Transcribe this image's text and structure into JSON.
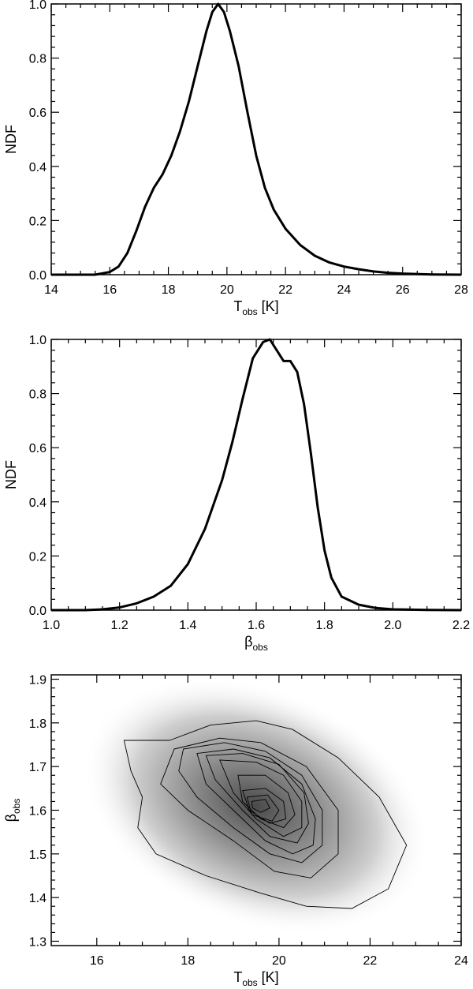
{
  "chart_data": [
    {
      "type": "line",
      "xlabel_main": "T",
      "xlabel_sub": "obs",
      "xlabel_unit": " [K]",
      "ylabel": "NDF",
      "xlim": [
        14,
        28
      ],
      "ylim": [
        0,
        1.0
      ],
      "xticks": [
        "14",
        "16",
        "18",
        "20",
        "22",
        "24",
        "26",
        "28"
      ],
      "yticks": [
        "0.0",
        "0.2",
        "0.4",
        "0.6",
        "0.8",
        "1.0"
      ],
      "series": [
        {
          "x": [
            14.0,
            15.5,
            16.0,
            16.3,
            16.6,
            16.9,
            17.2,
            17.5,
            17.8,
            18.1,
            18.4,
            18.7,
            19.0,
            19.3,
            19.5,
            19.7,
            19.9,
            20.1,
            20.4,
            20.7,
            21.0,
            21.3,
            21.6,
            22.0,
            22.5,
            23.0,
            23.5,
            24.0,
            24.5,
            25.0,
            25.5,
            26.0,
            27.0,
            28.0
          ],
          "y": [
            0.0,
            0.0,
            0.01,
            0.03,
            0.08,
            0.16,
            0.25,
            0.32,
            0.37,
            0.44,
            0.53,
            0.64,
            0.77,
            0.9,
            0.97,
            1.0,
            0.97,
            0.9,
            0.77,
            0.6,
            0.44,
            0.32,
            0.24,
            0.17,
            0.11,
            0.07,
            0.045,
            0.03,
            0.02,
            0.012,
            0.007,
            0.004,
            0.001,
            0.0
          ]
        }
      ]
    },
    {
      "type": "line",
      "xlabel_main": "β",
      "xlabel_sub": "obs",
      "ylabel": "NDF",
      "xlim": [
        1.0,
        2.2
      ],
      "ylim": [
        0,
        1.0
      ],
      "xticks": [
        "1.0",
        "1.2",
        "1.4",
        "1.6",
        "1.8",
        "2.0",
        "2.2"
      ],
      "yticks": [
        "0.0",
        "0.2",
        "0.4",
        "0.6",
        "0.8",
        "1.0"
      ],
      "series": [
        {
          "x": [
            1.0,
            1.1,
            1.15,
            1.2,
            1.25,
            1.3,
            1.35,
            1.4,
            1.45,
            1.5,
            1.53,
            1.56,
            1.59,
            1.62,
            1.64,
            1.66,
            1.68,
            1.7,
            1.72,
            1.74,
            1.76,
            1.78,
            1.8,
            1.82,
            1.85,
            1.9,
            1.95,
            2.0,
            2.1,
            2.2
          ],
          "y": [
            0.0,
            0.0,
            0.003,
            0.01,
            0.025,
            0.05,
            0.09,
            0.17,
            0.3,
            0.48,
            0.62,
            0.78,
            0.93,
            0.99,
            1.0,
            0.96,
            0.92,
            0.92,
            0.88,
            0.76,
            0.58,
            0.38,
            0.22,
            0.12,
            0.05,
            0.02,
            0.008,
            0.003,
            0.001,
            0.0
          ]
        }
      ]
    },
    {
      "type": "heatmap",
      "xlabel_main": "T",
      "xlabel_sub": "obs",
      "xlabel_unit": " [K]",
      "ylabel_main": "β",
      "ylabel_sub": "obs",
      "xlim": [
        15,
        24
      ],
      "ylim": [
        1.29,
        1.91
      ],
      "xticks": [
        "16",
        "18",
        "20",
        "22",
        "24"
      ],
      "yticks": [
        "1.3",
        "1.4",
        "1.5",
        "1.6",
        "1.7",
        "1.8",
        "1.9"
      ],
      "peak": [
        19.5,
        1.61
      ],
      "contours": [
        [
          [
            17.6,
            1.76
          ],
          [
            18.5,
            1.795
          ],
          [
            19.5,
            1.805
          ],
          [
            20.3,
            1.785
          ],
          [
            21.3,
            1.72
          ],
          [
            22.2,
            1.63
          ],
          [
            22.8,
            1.52
          ],
          [
            22.4,
            1.42
          ],
          [
            21.6,
            1.375
          ],
          [
            20.6,
            1.38
          ],
          [
            19.6,
            1.41
          ],
          [
            18.4,
            1.45
          ],
          [
            17.3,
            1.5
          ],
          [
            16.9,
            1.56
          ],
          [
            17.0,
            1.63
          ],
          [
            16.75,
            1.69
          ],
          [
            16.6,
            1.76
          ]
        ],
        [
          [
            17.7,
            1.74
          ],
          [
            18.7,
            1.765
          ],
          [
            19.6,
            1.755
          ],
          [
            20.6,
            1.7
          ],
          [
            21.3,
            1.6
          ],
          [
            21.3,
            1.5
          ],
          [
            20.7,
            1.445
          ],
          [
            19.9,
            1.46
          ],
          [
            19.0,
            1.53
          ],
          [
            18.0,
            1.6
          ],
          [
            17.4,
            1.66
          ]
        ],
        [
          [
            17.9,
            1.74
          ],
          [
            18.8,
            1.755
          ],
          [
            19.7,
            1.735
          ],
          [
            20.5,
            1.68
          ],
          [
            20.95,
            1.6
          ],
          [
            20.95,
            1.52
          ],
          [
            20.5,
            1.48
          ],
          [
            19.8,
            1.5
          ],
          [
            19.0,
            1.56
          ],
          [
            18.2,
            1.63
          ],
          [
            17.8,
            1.69
          ]
        ],
        [
          [
            18.2,
            1.73
          ],
          [
            19.0,
            1.74
          ],
          [
            19.8,
            1.72
          ],
          [
            20.5,
            1.66
          ],
          [
            20.8,
            1.58
          ],
          [
            20.75,
            1.52
          ],
          [
            20.3,
            1.5
          ],
          [
            19.7,
            1.53
          ],
          [
            19.0,
            1.6
          ],
          [
            18.4,
            1.66
          ]
        ],
        [
          [
            18.4,
            1.725
          ],
          [
            19.2,
            1.73
          ],
          [
            20.0,
            1.705
          ],
          [
            20.55,
            1.64
          ],
          [
            20.65,
            1.57
          ],
          [
            20.4,
            1.525
          ],
          [
            19.8,
            1.54
          ],
          [
            19.2,
            1.6
          ],
          [
            18.6,
            1.67
          ]
        ],
        [
          [
            18.7,
            1.715
          ],
          [
            19.5,
            1.71
          ],
          [
            20.1,
            1.68
          ],
          [
            20.5,
            1.62
          ],
          [
            20.5,
            1.56
          ],
          [
            20.1,
            1.54
          ],
          [
            19.5,
            1.58
          ],
          [
            19.0,
            1.64
          ]
        ],
        [
          [
            19.1,
            1.68
          ],
          [
            19.7,
            1.68
          ],
          [
            20.2,
            1.64
          ],
          [
            20.35,
            1.59
          ],
          [
            20.1,
            1.56
          ],
          [
            19.6,
            1.58
          ],
          [
            19.2,
            1.62
          ]
        ],
        [
          [
            19.2,
            1.645
          ],
          [
            19.7,
            1.65
          ],
          [
            20.1,
            1.62
          ],
          [
            20.15,
            1.58
          ],
          [
            19.8,
            1.57
          ],
          [
            19.35,
            1.6
          ]
        ],
        [
          [
            19.3,
            1.63
          ],
          [
            19.75,
            1.635
          ],
          [
            20.0,
            1.6
          ],
          [
            19.85,
            1.575
          ],
          [
            19.4,
            1.59
          ]
        ],
        [
          [
            19.4,
            1.62
          ],
          [
            19.7,
            1.625
          ],
          [
            19.8,
            1.605
          ],
          [
            19.6,
            1.595
          ],
          [
            19.42,
            1.605
          ]
        ]
      ]
    }
  ]
}
